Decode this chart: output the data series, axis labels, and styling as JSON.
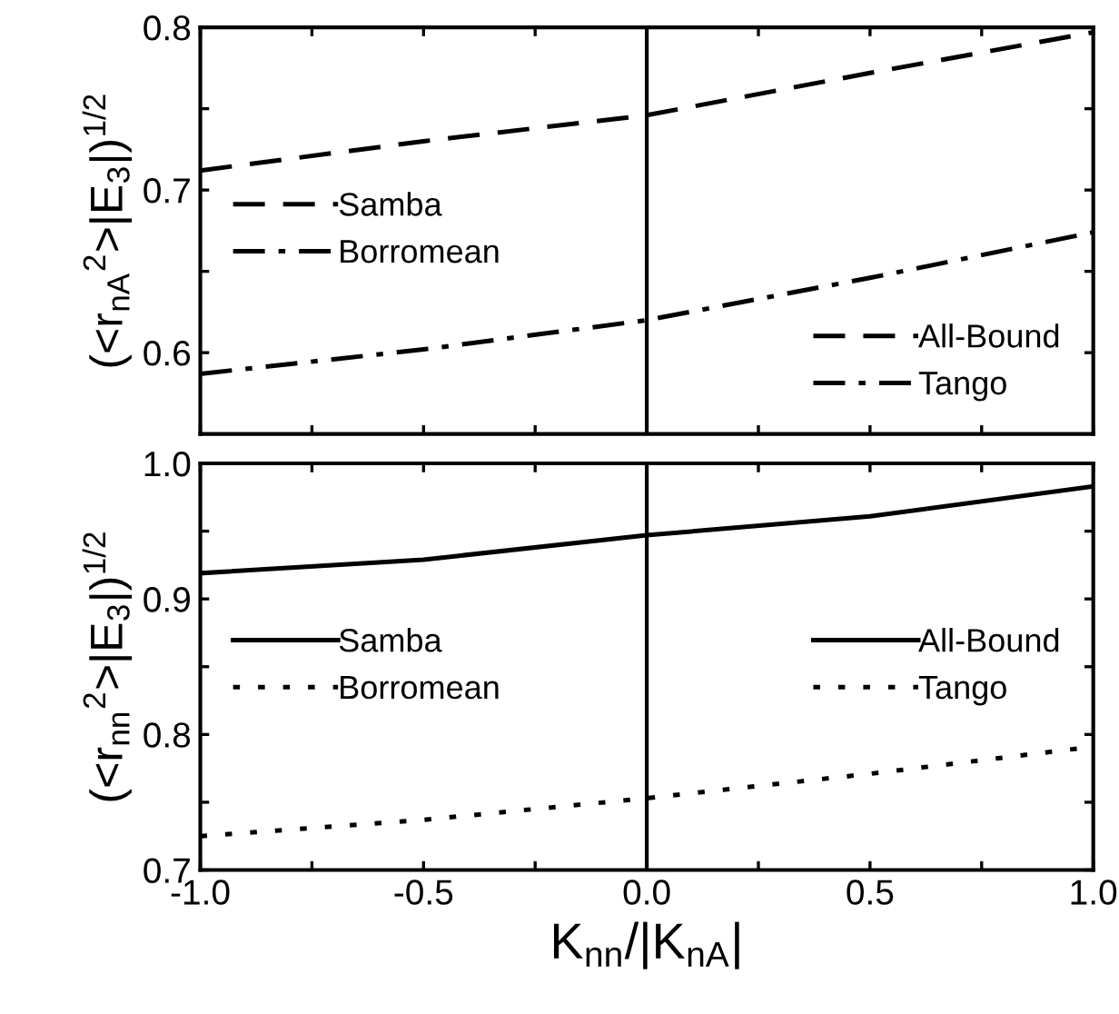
{
  "chart_data": [
    {
      "type": "line",
      "ylabel": "(<r$_{nA}$$^{2}$>|E$_{3}$|)$^{1/2}$",
      "x": [
        -1.0,
        -0.5,
        0.0,
        0.5,
        1.0
      ],
      "series": [
        {
          "name": "Samba",
          "color": "#000000",
          "line_style": "dashed",
          "values": [
            0.712,
            0.73,
            0.746,
            0.772,
            0.797
          ]
        },
        {
          "name": "Borromean",
          "color": "#000000",
          "line_style": "dashdot",
          "values": [
            0.587,
            0.602,
            0.62,
            0.646,
            0.674
          ]
        }
      ],
      "annotations": [
        "All-Bound",
        "Tango"
      ],
      "legend": [
        "center left",
        "lower right"
      ],
      "xlim": [
        -1.0,
        1.0
      ],
      "ylim": [
        0.55,
        0.8
      ],
      "xticks": [
        -1.0,
        -0.75,
        -0.5,
        -0.25,
        0.0,
        0.25,
        0.5,
        0.75,
        1.0
      ],
      "yticks": [
        0.6,
        {
          "value": 0.65,
          "label": null
        },
        0.7,
        {
          "value": 0.75,
          "label": null
        },
        0.8
      ],
      "ref_lines": [
        {
          "axis": "x",
          "value": 0.0,
          "color": "#000000",
          "line_style": "solid"
        }
      ],
      "tick_labels": "y",
      "grid": false
    },
    {
      "type": "line",
      "xlabel": "K$_{nn}$/|K$_{nA}$|",
      "ylabel": "(<r$_{nn}$$^{2}$>|E$_{3}$|)$^{1/2}$",
      "x": [
        -1.0,
        -0.5,
        0.0,
        0.5,
        1.0
      ],
      "series": [
        {
          "name": "Samba",
          "color": "#000000",
          "line_style": "solid",
          "values": [
            0.919,
            0.929,
            0.947,
            0.961,
            0.983
          ]
        },
        {
          "name": "Borromean",
          "color": "#000000",
          "line_style": "dotted",
          "values": [
            0.725,
            0.737,
            0.753,
            0.771,
            0.791
          ]
        }
      ],
      "annotations": [
        "All-Bound",
        "Tango"
      ],
      "legend": [
        "center left",
        "center right"
      ],
      "xlim": [
        -1.0,
        1.0
      ],
      "ylim": [
        0.7,
        1.0
      ],
      "xticks": [
        {
          "value": -1.0,
          "label": "-1.0"
        },
        {
          "value": -0.75,
          "label": null
        },
        {
          "value": -0.5,
          "label": "-0.5"
        },
        {
          "value": -0.25,
          "label": null
        },
        {
          "value": 0.0,
          "label": "0.0"
        },
        {
          "value": 0.25,
          "label": null
        },
        {
          "value": 0.5,
          "label": "0.5"
        },
        {
          "value": 0.75,
          "label": null
        },
        {
          "value": 1.0,
          "label": "1.0"
        }
      ],
      "yticks": [
        0.7,
        {
          "value": 0.75,
          "label": null
        },
        0.8,
        {
          "value": 0.85,
          "label": null
        },
        0.9,
        {
          "value": 0.95,
          "label": null
        },
        {
          "value": 1.0,
          "label": "1.0"
        }
      ],
      "ref_lines": [
        {
          "axis": "x",
          "value": 0.0,
          "color": "#000000",
          "line_style": "solid"
        }
      ],
      "grid": false
    }
  ]
}
